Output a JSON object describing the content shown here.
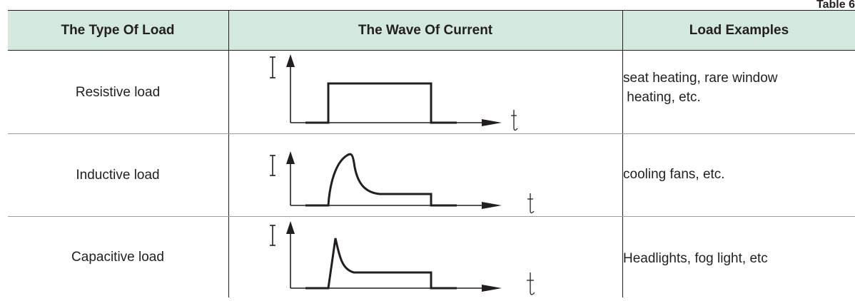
{
  "table_label": "Table 6",
  "headers": {
    "type": "The Type Of Load",
    "wave": "The Wave Of Current",
    "examples": "Load Examples"
  },
  "rows": [
    {
      "type": "Resistive load",
      "examples": [
        "seat heating, rare window",
        " heating, etc."
      ],
      "wave_shape": "square pulse"
    },
    {
      "type": "Inductive load",
      "examples": [
        "cooling fans, etc."
      ],
      "wave_shape": "slow rise then decay to plateau"
    },
    {
      "type": "Capacitive load",
      "examples": [
        "Headlights, fog light, etc"
      ],
      "wave_shape": "sharp spike then decay to plateau"
    }
  ],
  "axis_labels": {
    "y": "I",
    "x": "t"
  },
  "colors": {
    "header_bg": "#d3e9dd",
    "ink": "#231f20",
    "row_divider": "#9c9c9c"
  }
}
